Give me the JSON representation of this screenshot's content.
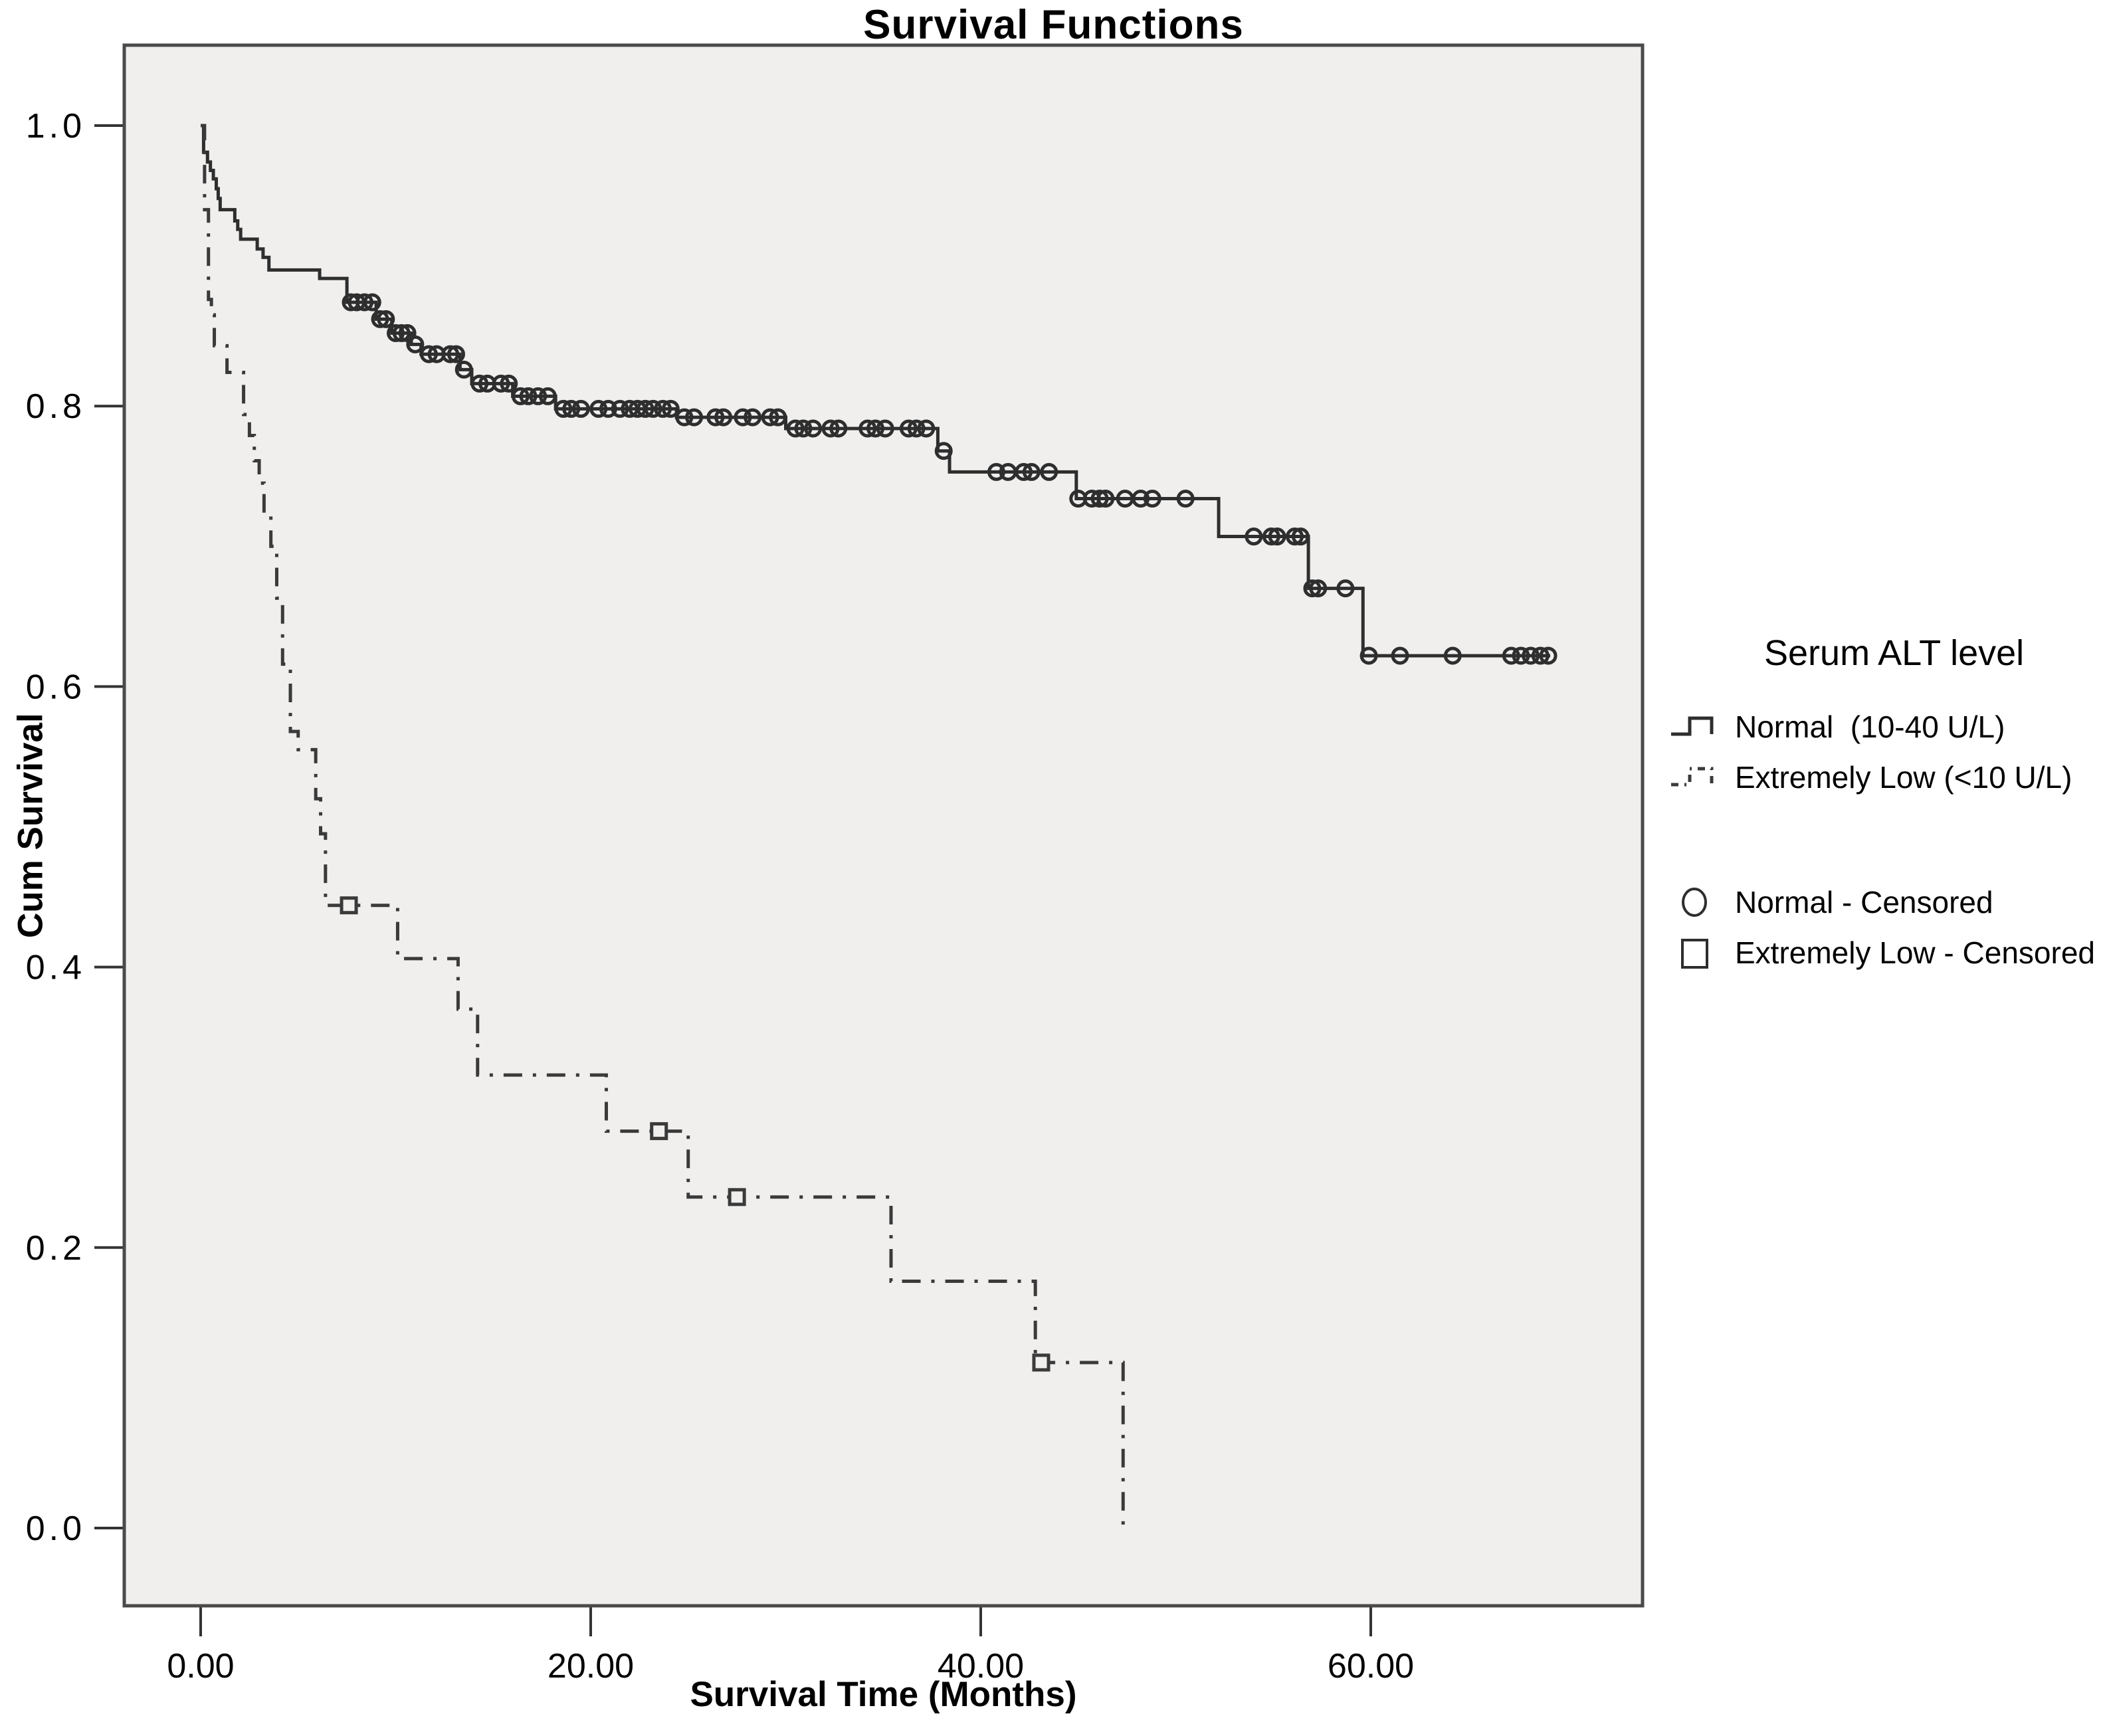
{
  "chart_data": {
    "type": "line",
    "subtype": "kaplan-meier-step",
    "title": "Survival Functions",
    "xlabel": "Survival Time (Months)",
    "ylabel": "Cum Survival",
    "xlim": [
      -3.9,
      74
    ],
    "ylim": [
      -0.055,
      1.057
    ],
    "grid": false,
    "x_ticks": [
      {
        "label": "0.00",
        "value": 0
      },
      {
        "label": "20.00",
        "value": 20
      },
      {
        "label": "40.00",
        "value": 40
      },
      {
        "label": "60.00",
        "value": 60
      }
    ],
    "y_ticks": [
      {
        "label": "0.0",
        "value": 0.0
      },
      {
        "label": "0.2",
        "value": 0.2
      },
      {
        "label": "0.4",
        "value": 0.4
      },
      {
        "label": "0.6",
        "value": 0.6
      },
      {
        "label": "0.8",
        "value": 0.8
      },
      {
        "label": "1.0",
        "value": 1.0
      }
    ],
    "colors": {
      "plot_bg": "#f0efee",
      "frame": "#4a4a4a",
      "tick": "#333333",
      "normal_line": "#2e2e2e",
      "extremely_low_line": "#3a3a3a",
      "text": "#000000"
    },
    "legend": {
      "title": "Serum ALT level",
      "position": "right",
      "series": [
        {
          "label": "Normal  (10-40 U/L)",
          "style": "solid-step"
        },
        {
          "label": "Extremely Low (<10 U/L)",
          "style": "dash-dot-step"
        }
      ],
      "censored": [
        {
          "label": "Normal - Censored",
          "marker": "circle"
        },
        {
          "label": "Extremely Low - Censored",
          "marker": "square"
        }
      ]
    },
    "series": [
      {
        "name": "Normal (10-40 U/L)",
        "line": "solid",
        "marker": "circle",
        "end_time": 69.2,
        "steps": [
          [
            0,
            1.0
          ],
          [
            0.15,
            0.981
          ],
          [
            0.35,
            0.974
          ],
          [
            0.5,
            0.968
          ],
          [
            0.65,
            0.962
          ],
          [
            0.8,
            0.955
          ],
          [
            0.9,
            0.948
          ],
          [
            1.0,
            0.94
          ],
          [
            1.75,
            0.932
          ],
          [
            1.9,
            0.926
          ],
          [
            2.05,
            0.919
          ],
          [
            2.9,
            0.912
          ],
          [
            3.2,
            0.906
          ],
          [
            3.5,
            0.897
          ],
          [
            6.1,
            0.891
          ],
          [
            7.5,
            0.874
          ],
          [
            9.0,
            0.862
          ],
          [
            9.8,
            0.852
          ],
          [
            10.8,
            0.844
          ],
          [
            11.3,
            0.837
          ],
          [
            13.3,
            0.826
          ],
          [
            13.9,
            0.816
          ],
          [
            16.0,
            0.807
          ],
          [
            18.2,
            0.798
          ],
          [
            24.4,
            0.792
          ],
          [
            30.0,
            0.784
          ],
          [
            37.8,
            0.768
          ],
          [
            38.4,
            0.753
          ],
          [
            44.9,
            0.734
          ],
          [
            52.2,
            0.707
          ],
          [
            56.8,
            0.67
          ],
          [
            59.6,
            0.622
          ]
        ],
        "censored": [
          [
            7.7,
            0.874
          ],
          [
            8.0,
            0.874
          ],
          [
            8.4,
            0.874
          ],
          [
            8.8,
            0.874
          ],
          [
            9.2,
            0.862
          ],
          [
            9.5,
            0.862
          ],
          [
            10.0,
            0.852
          ],
          [
            10.3,
            0.852
          ],
          [
            10.6,
            0.852
          ],
          [
            11.0,
            0.844
          ],
          [
            11.7,
            0.837
          ],
          [
            12.1,
            0.837
          ],
          [
            12.8,
            0.837
          ],
          [
            13.1,
            0.837
          ],
          [
            13.5,
            0.826
          ],
          [
            14.3,
            0.816
          ],
          [
            14.7,
            0.816
          ],
          [
            15.4,
            0.816
          ],
          [
            15.8,
            0.816
          ],
          [
            16.4,
            0.807
          ],
          [
            16.8,
            0.807
          ],
          [
            17.3,
            0.807
          ],
          [
            17.8,
            0.807
          ],
          [
            18.6,
            0.798
          ],
          [
            19.0,
            0.798
          ],
          [
            19.5,
            0.798
          ],
          [
            20.4,
            0.798
          ],
          [
            20.9,
            0.798
          ],
          [
            21.5,
            0.798
          ],
          [
            22.0,
            0.798
          ],
          [
            22.4,
            0.798
          ],
          [
            22.8,
            0.798
          ],
          [
            23.2,
            0.798
          ],
          [
            23.7,
            0.798
          ],
          [
            24.1,
            0.798
          ],
          [
            24.8,
            0.792
          ],
          [
            25.3,
            0.792
          ],
          [
            26.4,
            0.792
          ],
          [
            26.8,
            0.792
          ],
          [
            27.8,
            0.792
          ],
          [
            28.3,
            0.792
          ],
          [
            29.2,
            0.792
          ],
          [
            29.6,
            0.792
          ],
          [
            30.5,
            0.784
          ],
          [
            30.9,
            0.784
          ],
          [
            31.4,
            0.784
          ],
          [
            32.3,
            0.784
          ],
          [
            32.7,
            0.784
          ],
          [
            34.2,
            0.784
          ],
          [
            34.6,
            0.784
          ],
          [
            35.1,
            0.784
          ],
          [
            36.3,
            0.784
          ],
          [
            36.7,
            0.784
          ],
          [
            37.2,
            0.784
          ],
          [
            38.1,
            0.768
          ],
          [
            40.8,
            0.753
          ],
          [
            41.4,
            0.753
          ],
          [
            42.2,
            0.753
          ],
          [
            42.6,
            0.753
          ],
          [
            43.5,
            0.753
          ],
          [
            45.0,
            0.734
          ],
          [
            45.7,
            0.734
          ],
          [
            46.1,
            0.734
          ],
          [
            46.4,
            0.734
          ],
          [
            47.4,
            0.734
          ],
          [
            48.2,
            0.734
          ],
          [
            48.8,
            0.734
          ],
          [
            50.5,
            0.734
          ],
          [
            54.0,
            0.707
          ],
          [
            54.9,
            0.707
          ],
          [
            55.2,
            0.707
          ],
          [
            56.1,
            0.707
          ],
          [
            56.4,
            0.707
          ],
          [
            57.0,
            0.67
          ],
          [
            57.3,
            0.67
          ],
          [
            58.7,
            0.67
          ],
          [
            59.9,
            0.622
          ],
          [
            61.5,
            0.622
          ],
          [
            64.2,
            0.622
          ],
          [
            67.2,
            0.622
          ],
          [
            67.7,
            0.622
          ],
          [
            68.2,
            0.622
          ],
          [
            68.7,
            0.622
          ],
          [
            69.1,
            0.622
          ]
        ]
      },
      {
        "name": "Extremely Low (<10 U/L)",
        "line": "dash-dot",
        "marker": "square",
        "end_time": 47.3,
        "steps": [
          [
            0,
            1.0
          ],
          [
            0.2,
            0.94
          ],
          [
            0.4,
            0.876
          ],
          [
            0.55,
            0.865
          ],
          [
            0.7,
            0.843
          ],
          [
            1.35,
            0.824
          ],
          [
            2.2,
            0.794
          ],
          [
            2.5,
            0.779
          ],
          [
            2.75,
            0.761
          ],
          [
            3.0,
            0.745
          ],
          [
            3.25,
            0.723
          ],
          [
            3.6,
            0.7
          ],
          [
            3.9,
            0.663
          ],
          [
            4.2,
            0.616
          ],
          [
            4.6,
            0.568
          ],
          [
            5.0,
            0.555
          ],
          [
            5.9,
            0.52
          ],
          [
            6.15,
            0.495
          ],
          [
            6.4,
            0.449
          ],
          [
            6.6,
            0.444
          ],
          [
            10.1,
            0.406
          ],
          [
            13.2,
            0.37
          ],
          [
            14.2,
            0.323
          ],
          [
            20.8,
            0.283
          ],
          [
            25.0,
            0.236
          ],
          [
            35.4,
            0.176
          ],
          [
            42.8,
            0.118
          ],
          [
            47.3,
            0.0
          ]
        ],
        "censored": [
          [
            7.6,
            0.444
          ],
          [
            23.5,
            0.283
          ],
          [
            27.5,
            0.236
          ],
          [
            43.1,
            0.118
          ]
        ]
      }
    ]
  }
}
